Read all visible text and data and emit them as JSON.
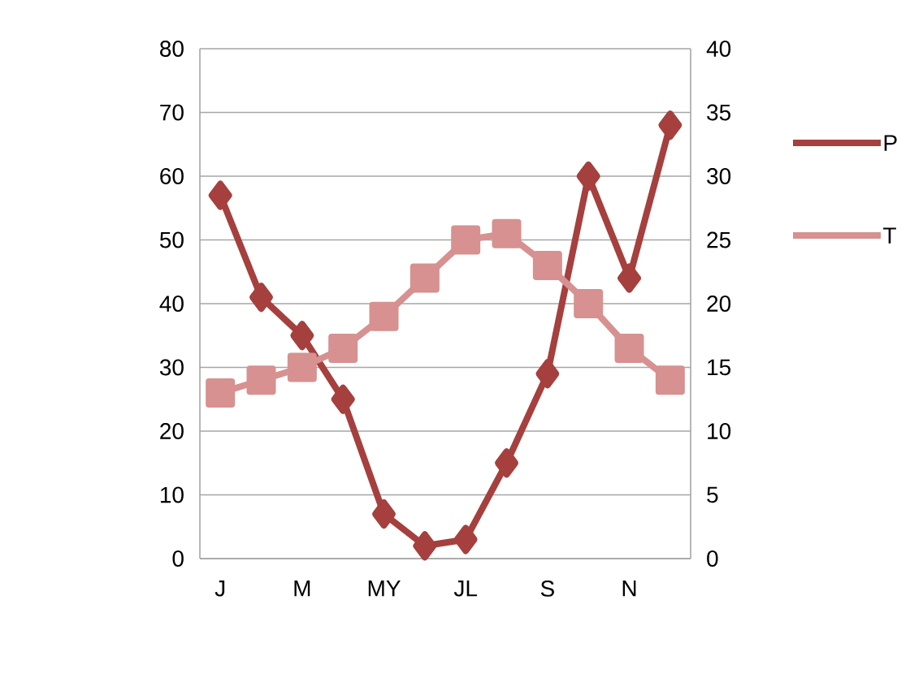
{
  "chart_data": {
    "type": "line",
    "categories": [
      "J",
      null,
      "M",
      null,
      "MY",
      null,
      "JL",
      null,
      "S",
      null,
      "N",
      null
    ],
    "series": [
      {
        "name": "P",
        "color": "#a5403e",
        "marker": "diamond",
        "values": [
          57,
          41,
          35,
          25,
          7,
          2,
          3,
          15,
          29,
          60,
          44,
          68
        ]
      },
      {
        "name": "T",
        "color": "#d69190",
        "marker": "square",
        "axis": "y2",
        "values": [
          13,
          14,
          15,
          16.5,
          19,
          22,
          25,
          25.5,
          23,
          20,
          16.5,
          14
        ]
      }
    ],
    "ylim": [
      0,
      80
    ],
    "yticks": [
      0,
      10,
      20,
      30,
      40,
      50,
      60,
      70,
      80
    ],
    "y2lim": [
      0,
      40
    ],
    "y2ticks": [
      0,
      5,
      10,
      15,
      20,
      25,
      30,
      35,
      40
    ],
    "grid": "y",
    "legend": "top right",
    "line_style": "solid"
  }
}
